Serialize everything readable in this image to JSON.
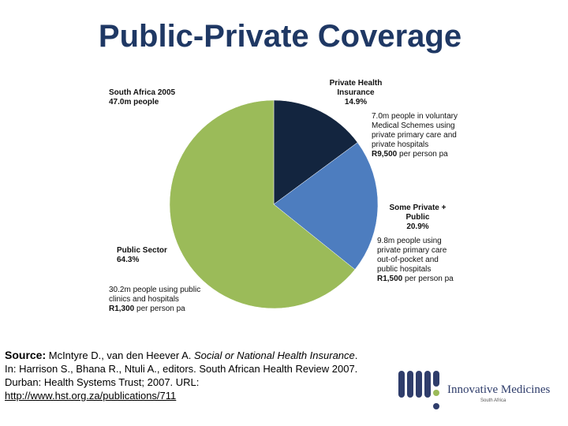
{
  "title": "Public-Private Coverage",
  "chart_data": {
    "type": "pie",
    "title": "South Africa 2005",
    "subtitle": "47.0m people",
    "slices": [
      {
        "name": "Private Health Insurance",
        "name_lines": [
          "Private Health",
          "Insurance"
        ],
        "value": 14.9,
        "pct_label": "14.9%",
        "color": "#13253f",
        "desc_lines": [
          "7.0m people in voluntary",
          "Medical Schemes using",
          "private primary care and",
          "private hospitals"
        ],
        "cost_amount": "R9,500",
        "cost_unit": " per person pa"
      },
      {
        "name": "Some Private + Public",
        "name_lines": [
          "Some Private +",
          "Public"
        ],
        "value": 20.9,
        "pct_label": "20.9%",
        "color": "#4d7dbf",
        "desc_lines": [
          "9.8m people using",
          "private primary care",
          "out-of-pocket and",
          "public hospitals"
        ],
        "cost_amount": "R1,500",
        "cost_unit": " per person pa"
      },
      {
        "name": "Public Sector",
        "name_lines": [
          "Public Sector"
        ],
        "value": 64.3,
        "pct_label": "64.3%",
        "color": "#9bbb59",
        "desc_lines": [
          "30.2m people using public",
          "clinics and hospitals"
        ],
        "cost_amount": "R1,300",
        "cost_unit": " per person pa"
      }
    ],
    "legend": "none"
  },
  "source": {
    "label": "Source:",
    "authors": " McIntyre D., van den Heever A. ",
    "work_title": "Social or National Health Insurance",
    "after_title": ".",
    "line2": "In: Harrison S., Bhana R., Ntuli A., editors. South African Health Review 2007.",
    "line3": "Durban: Health Systems Trust; 2007. URL:",
    "link": "http://www.hst.org.za/publications/711"
  },
  "logo": {
    "name": "Innovative Medicines",
    "sub": "South Africa",
    "colors": {
      "navy": "#2f3d6b",
      "green": "#9bbb59"
    }
  }
}
